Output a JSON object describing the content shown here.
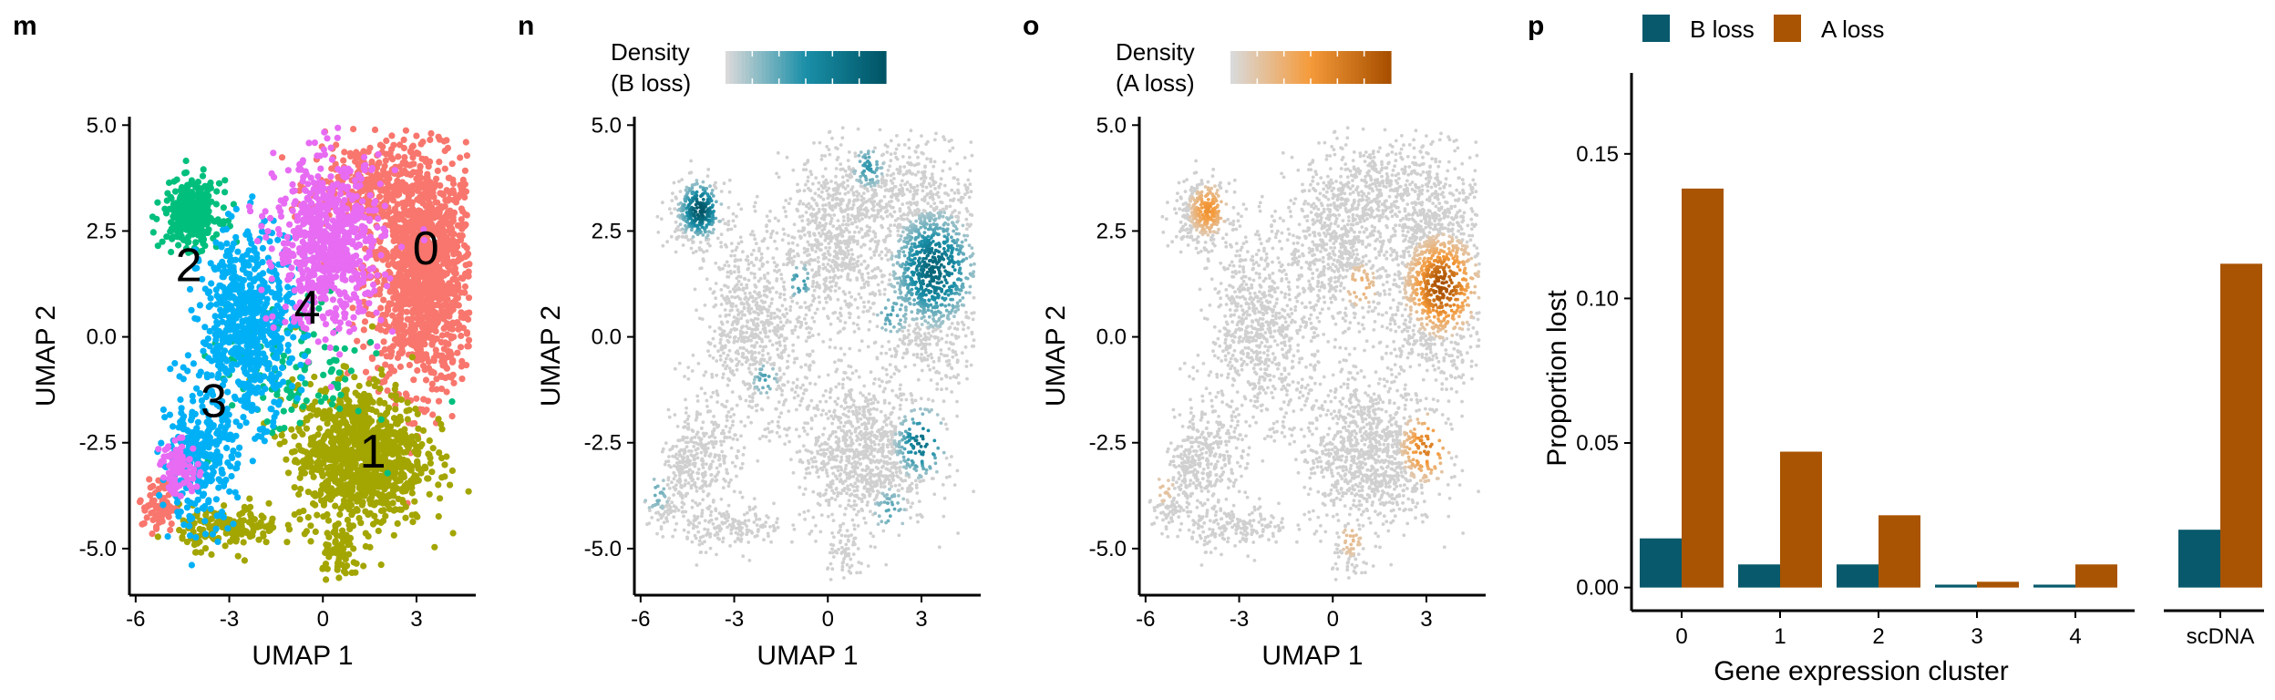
{
  "panels": {
    "m": "m",
    "n": "n",
    "o": "o",
    "p": "p"
  },
  "chart_data": [
    {
      "id": "m",
      "type": "scatter",
      "title": "m",
      "xlabel": "UMAP 1",
      "ylabel": "UMAP 2",
      "xlim": [
        -6.2,
        4.9
      ],
      "ylim": [
        -6.1,
        5.2
      ],
      "xticks": [
        -6,
        -3,
        0,
        3
      ],
      "xtick_labels": [
        "-6",
        "-3",
        "0",
        "3"
      ],
      "yticks": [
        -5,
        -2.5,
        0,
        2.5,
        5
      ],
      "ytick_labels": [
        "-5.0",
        "-2.5",
        "0.0",
        "2.5",
        "5.0"
      ],
      "clusters": [
        {
          "label": "0",
          "color": "#F8766D",
          "label_pos": [
            3.3,
            2.1
          ]
        },
        {
          "label": "1",
          "color": "#A3A500",
          "label_pos": [
            1.6,
            -2.7
          ]
        },
        {
          "label": "2",
          "color": "#00BF7D",
          "label_pos": [
            -4.3,
            1.7
          ]
        },
        {
          "label": "3",
          "color": "#00B0F6",
          "label_pos": [
            -3.5,
            -1.5
          ]
        },
        {
          "label": "4",
          "color": "#E76BF3",
          "label_pos": [
            -0.5,
            0.7
          ]
        }
      ]
    },
    {
      "id": "n",
      "type": "scatter",
      "title": "n",
      "xlabel": "UMAP 1",
      "ylabel": "UMAP 2",
      "xlim": [
        -6.2,
        4.9
      ],
      "ylim": [
        -6.1,
        5.2
      ],
      "xticks": [
        -6,
        -3,
        0,
        3
      ],
      "xtick_labels": [
        "-6",
        "-3",
        "0",
        "3"
      ],
      "yticks": [
        -5,
        -2.5,
        0,
        2.5,
        5
      ],
      "ytick_labels": [
        "-5.0",
        "-2.5",
        "0.0",
        "2.5",
        "5.0"
      ],
      "legend": {
        "title_line1": "Density",
        "title_line2": "(B loss)",
        "colors": [
          "#d9d9d9",
          "#1a8fa8",
          "#005566"
        ]
      },
      "base_color": "#d0d0d0"
    },
    {
      "id": "o",
      "type": "scatter",
      "title": "o",
      "xlabel": "UMAP 1",
      "ylabel": "UMAP 2",
      "xlim": [
        -6.2,
        4.9
      ],
      "ylim": [
        -6.1,
        5.2
      ],
      "xticks": [
        -6,
        -3,
        0,
        3
      ],
      "xtick_labels": [
        "-6",
        "-3",
        "0",
        "3"
      ],
      "yticks": [
        -5,
        -2.5,
        0,
        2.5,
        5
      ],
      "ytick_labels": [
        "-5.0",
        "-2.5",
        "0.0",
        "2.5",
        "5.0"
      ],
      "legend": {
        "title_line1": "Density",
        "title_line2": "(A loss)",
        "colors": [
          "#d9d9d9",
          "#f59a3a",
          "#a85000"
        ]
      },
      "base_color": "#d0d0d0"
    },
    {
      "id": "p",
      "type": "bar",
      "title": "p",
      "xlabel": "Gene expression cluster",
      "ylabel": "Proportion lost",
      "ylim": [
        -0.008,
        0.178
      ],
      "yticks": [
        0,
        0.05,
        0.1,
        0.15
      ],
      "ytick_labels": [
        "0.00",
        "0.05",
        "0.10",
        "0.15"
      ],
      "categories": [
        "0",
        "1",
        "2",
        "3",
        "4"
      ],
      "extra_category": "scDNA",
      "series": [
        {
          "name": "B loss",
          "color": "#07596B",
          "values": [
            0.017,
            0.008,
            0.008,
            0.001,
            0.001
          ],
          "extra_value": 0.02
        },
        {
          "name": "A loss",
          "color": "#A95402",
          "values": [
            0.138,
            0.047,
            0.025,
            0.002,
            0.008
          ],
          "extra_value": 0.112
        }
      ],
      "legend_position": "top-left"
    }
  ]
}
